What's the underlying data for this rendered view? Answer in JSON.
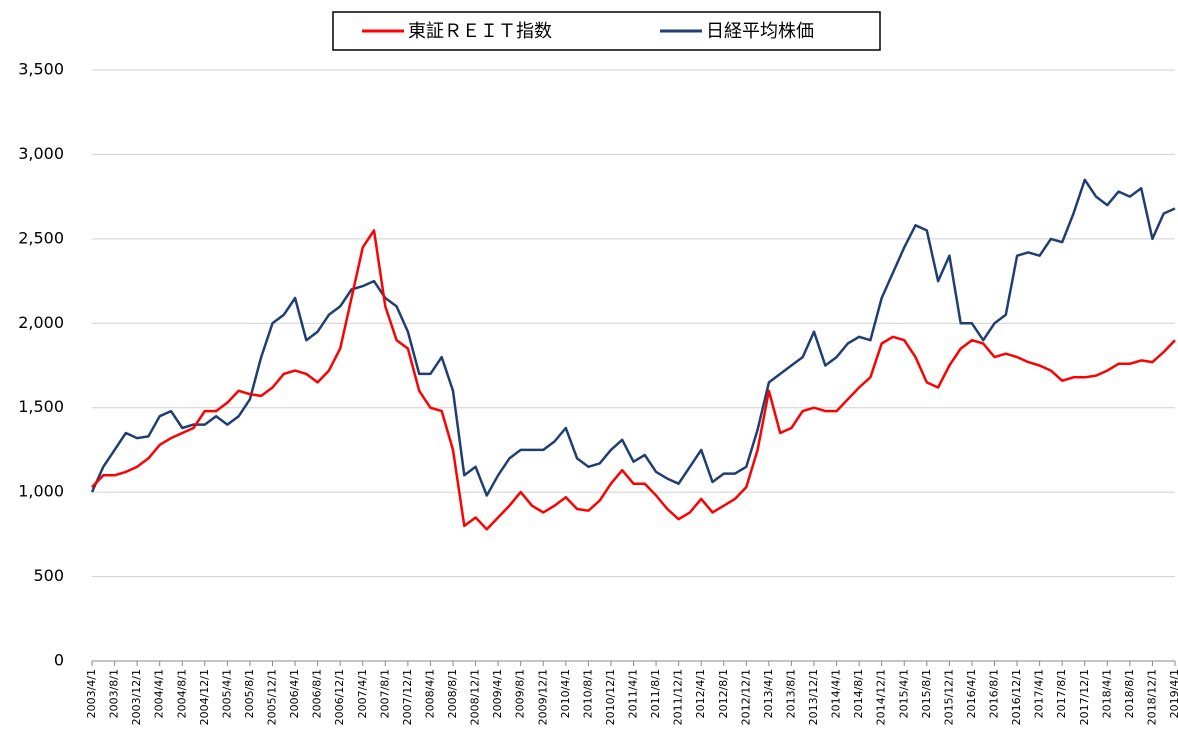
{
  "chart_data": {
    "type": "line",
    "categories": [
      "2003/4/1",
      null,
      "2003/8/1",
      null,
      "2003/12/1",
      null,
      "2004/4/1",
      null,
      "2004/8/1",
      null,
      "2004/12/1",
      null,
      "2005/4/1",
      null,
      "2005/8/1",
      null,
      "2005/12/1",
      null,
      "2006/4/1",
      null,
      "2006/8/1",
      null,
      "2006/12/1",
      null,
      "2007/4/1",
      null,
      "2007/8/1",
      null,
      "2007/12/1",
      null,
      "2008/4/1",
      null,
      "2008/8/1",
      null,
      "2008/12/1",
      null,
      "2009/4/1",
      null,
      "2009/8/1",
      null,
      "2009/12/1",
      null,
      "2010/4/1",
      null,
      "2010/8/1",
      null,
      "2010/12/1",
      null,
      "2011/4/1",
      null,
      "2011/8/1",
      null,
      "2011/12/1",
      null,
      "2012/4/1",
      null,
      "2012/8/1",
      null,
      "2012/12/1",
      null,
      "2013/4/1",
      null,
      "2013/8/1",
      null,
      "2013/12/1",
      null,
      "2014/4/1",
      null,
      "2014/8/1",
      null,
      "2014/12/1",
      null,
      "2015/4/1",
      null,
      "2015/8/1",
      null,
      "2015/12/1",
      null,
      "2016/4/1",
      null,
      "2016/8/1",
      null,
      "2016/12/1",
      null,
      "2017/4/1",
      null,
      "2017/8/1",
      null,
      "2017/12/1",
      null,
      "2018/4/1",
      null,
      "2018/8/1",
      null,
      "2018/12/1",
      null,
      "2019/4/1"
    ],
    "series": [
      {
        "name": "東証ＲＥＩＴ指数",
        "color": "#ff0000",
        "values": [
          1030,
          1100,
          1100,
          1120,
          1150,
          1200,
          1280,
          1320,
          1350,
          1380,
          1480,
          1480,
          1530,
          1600,
          1580,
          1570,
          1620,
          1700,
          1720,
          1700,
          1650,
          1720,
          1850,
          2150,
          2450,
          2550,
          2100,
          1900,
          1850,
          1600,
          1500,
          1480,
          1250,
          800,
          850,
          780,
          850,
          920,
          1000,
          920,
          880,
          920,
          970,
          900,
          890,
          950,
          1050,
          1130,
          1050,
          1050,
          980,
          900,
          840,
          880,
          960,
          880,
          920,
          960,
          1030,
          1250,
          1600,
          1350,
          1380,
          1480,
          1500,
          1480,
          1480,
          1550,
          1620,
          1680,
          1880,
          1920,
          1900,
          1800,
          1650,
          1620,
          1750,
          1850,
          1900,
          1880,
          1800,
          1820,
          1800,
          1770,
          1750,
          1720,
          1660,
          1680,
          1680,
          1690,
          1720,
          1760,
          1760,
          1780,
          1770,
          1830,
          1900
        ]
      },
      {
        "name": "日経平均株価",
        "color": "#1f3f73",
        "values": [
          1000,
          1150,
          1250,
          1350,
          1320,
          1330,
          1450,
          1480,
          1380,
          1400,
          1400,
          1450,
          1400,
          1450,
          1550,
          1800,
          2000,
          2050,
          2150,
          1900,
          1950,
          2050,
          2100,
          2200,
          2220,
          2250,
          2150,
          2100,
          1950,
          1700,
          1700,
          1800,
          1600,
          1100,
          1150,
          980,
          1100,
          1200,
          1250,
          1250,
          1250,
          1300,
          1380,
          1200,
          1150,
          1170,
          1250,
          1310,
          1180,
          1220,
          1120,
          1080,
          1050,
          1150,
          1250,
          1060,
          1110,
          1110,
          1150,
          1370,
          1650,
          1700,
          1750,
          1800,
          1950,
          1750,
          1800,
          1880,
          1920,
          1900,
          2150,
          2300,
          2450,
          2580,
          2550,
          2250,
          2400,
          2000,
          2000,
          1900,
          2000,
          2050,
          2400,
          2420,
          2400,
          2500,
          2480,
          2650,
          2850,
          2750,
          2700,
          2780,
          2750,
          2800,
          2500,
          2650,
          2680
        ]
      }
    ],
    "ylim": [
      0,
      3500
    ],
    "yticks": [
      0,
      500,
      {
        "value": 1000,
        "label": "1,000"
      },
      {
        "value": 1500,
        "label": "1,500"
      },
      {
        "value": 2000,
        "label": "2,000"
      },
      {
        "value": 2500,
        "label": "2,500"
      },
      {
        "value": 3000,
        "label": "3,000"
      },
      {
        "value": 3500,
        "label": "3,500"
      }
    ],
    "grid": true,
    "legend": "top"
  }
}
